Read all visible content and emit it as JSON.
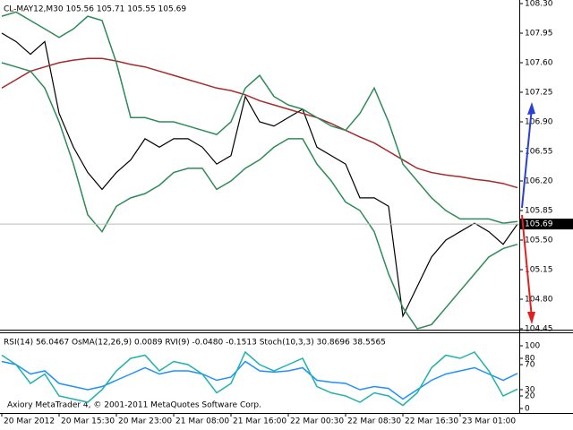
{
  "chart_data": [
    {
      "type": "line",
      "title": "CL-MAY12,M30  105.56 105.71 105.55 105.69",
      "categories": [
        "20 Mar 2012",
        null,
        null,
        null,
        "20 Mar 15:30",
        null,
        null,
        null,
        "20 Mar 23:00",
        null,
        null,
        null,
        "21 Mar 08:00",
        null,
        null,
        null,
        "21 Mar 16:00",
        null,
        null,
        null,
        "22 Mar 00:30",
        null,
        null,
        null,
        "22 Mar 08:30",
        null,
        null,
        null,
        "22 Mar 16:30",
        null,
        null,
        null,
        "23 Mar 01:00",
        null,
        null,
        null,
        null
      ],
      "series": [
        {
          "color": "#000000",
          "values": [
            107.95,
            107.85,
            107.7,
            107.85,
            107.0,
            106.6,
            106.3,
            106.1,
            106.3,
            106.45,
            106.7,
            106.6,
            106.7,
            106.7,
            106.6,
            106.4,
            106.5,
            107.2,
            106.9,
            106.85,
            106.95,
            107.05,
            106.6,
            106.5,
            106.4,
            106.0,
            106.0,
            105.9,
            104.6,
            104.95,
            105.3,
            105.5,
            105.6,
            105.7,
            105.6,
            105.45,
            105.69
          ]
        },
        {
          "color": "#a52a2a",
          "values": [
            107.3,
            107.4,
            107.5,
            107.55,
            107.6,
            107.63,
            107.65,
            107.65,
            107.62,
            107.58,
            107.55,
            107.5,
            107.45,
            107.4,
            107.35,
            107.3,
            107.27,
            107.22,
            107.15,
            107.1,
            107.05,
            107.0,
            106.95,
            106.88,
            106.8,
            106.72,
            106.65,
            106.55,
            106.45,
            106.35,
            106.3,
            106.27,
            106.25,
            106.22,
            106.2,
            106.17,
            106.12
          ]
        },
        {
          "color": "#2e8b57",
          "values": [
            108.15,
            108.2,
            108.1,
            108.0,
            107.9,
            108.0,
            108.15,
            108.1,
            107.6,
            106.95,
            106.95,
            106.9,
            106.9,
            106.85,
            106.8,
            106.75,
            106.9,
            107.3,
            107.45,
            107.2,
            107.1,
            107.05,
            106.95,
            106.85,
            106.8,
            107.0,
            107.3,
            106.9,
            106.4,
            106.2,
            106.0,
            105.85,
            105.75,
            105.75,
            105.75,
            105.7,
            105.72
          ]
        },
        {
          "color": "#2e8b57",
          "values": [
            107.6,
            107.55,
            107.5,
            107.3,
            106.9,
            106.4,
            105.8,
            105.6,
            105.9,
            106.0,
            106.05,
            106.15,
            106.3,
            106.35,
            106.35,
            106.1,
            106.2,
            106.35,
            106.45,
            106.6,
            106.7,
            106.7,
            106.4,
            106.2,
            105.95,
            105.85,
            105.6,
            105.1,
            104.7,
            104.45,
            104.5,
            104.7,
            104.9,
            105.1,
            105.3,
            105.4,
            105.45
          ]
        }
      ],
      "ylim": [
        104.45,
        108.3
      ],
      "yticks": [
        {
          "value": 108.3,
          "label": "108.30"
        },
        107.95,
        {
          "value": 107.6,
          "label": "107.60"
        },
        107.25,
        {
          "value": 106.9,
          "label": "106.90"
        },
        106.55,
        {
          "value": 106.2,
          "label": "106.20"
        },
        105.85,
        {
          "value": 105.5,
          "label": "105.50"
        },
        105.15,
        {
          "value": 104.8,
          "label": "104.80"
        },
        104.45
      ]
    },
    {
      "type": "line",
      "title": "RSI(14) 56.0467  OsMA(12,26,9) 0.0089  RVI(9) -0.0480 -0.1513  Stoch(10,3,3) 30.8696 38.5565",
      "annotation": "Axiory MetaTrader 4, © 2001-2011 MetaQuotes Software Corp.",
      "series": [
        {
          "color": "#1e90ff",
          "values": [
            75,
            70,
            55,
            60,
            40,
            35,
            30,
            35,
            45,
            55,
            65,
            55,
            60,
            60,
            55,
            45,
            50,
            75,
            60,
            58,
            60,
            65,
            45,
            42,
            40,
            30,
            35,
            32,
            15,
            30,
            45,
            55,
            60,
            65,
            55,
            45,
            56
          ]
        },
        {
          "color": "#20b2aa",
          "values": [
            85,
            70,
            40,
            55,
            20,
            15,
            10,
            30,
            60,
            80,
            85,
            60,
            75,
            70,
            55,
            25,
            40,
            90,
            70,
            60,
            70,
            80,
            35,
            25,
            20,
            10,
            25,
            20,
            5,
            25,
            65,
            85,
            80,
            90,
            60,
            20,
            31
          ]
        }
      ],
      "ylim": [
        0,
        100
      ],
      "yticks": [
        100,
        80,
        70,
        30,
        20,
        0
      ]
    }
  ]
}
